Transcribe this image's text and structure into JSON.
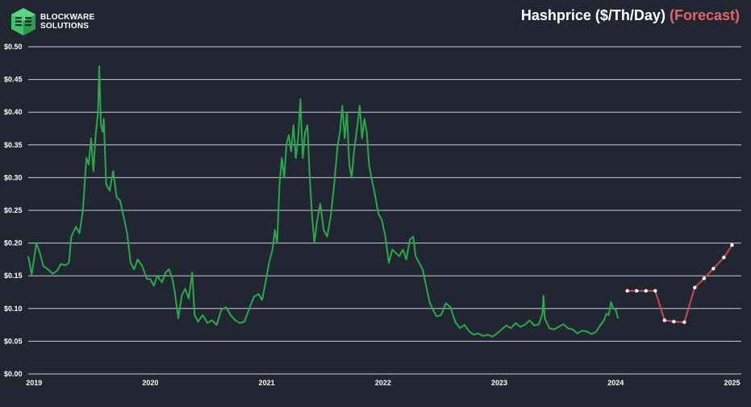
{
  "brand": {
    "line1": "BLOCKWARE",
    "line2": "SOLUTIONS",
    "logo_icon": "blockware-cube-logo",
    "logo_color": "#3cc46a"
  },
  "header": {
    "title_main": "Hashprice ($/Th/Day)",
    "title_forecast": "(Forecast)"
  },
  "colors": {
    "background": "#222633",
    "grid": "#c9ccd4",
    "historical": "#2aa84a",
    "forecast_line": "#c94a4a",
    "forecast_marker": "#ffffff",
    "forecast_title": "#e06565"
  },
  "chart_data": {
    "type": "line",
    "title": "Hashprice ($/Th/Day) (Forecast)",
    "xlabel": "",
    "ylabel": "",
    "grid": true,
    "legend": "none",
    "xlim": [
      2018.95,
      2025.08
    ],
    "ylim": [
      0,
      0.5
    ],
    "y_tick_labels": [
      "$0.00",
      "$0.05",
      "$0.10",
      "$0.15",
      "$0.20",
      "$0.25",
      "$0.30",
      "$0.35",
      "$0.40",
      "$0.45",
      "$0.50"
    ],
    "y_tick_values": [
      0,
      0.05,
      0.1,
      0.15,
      0.2,
      0.25,
      0.3,
      0.35,
      0.4,
      0.45,
      0.5
    ],
    "x_tick_labels": [
      "2019",
      "2020",
      "2021",
      "2022",
      "2023",
      "2024",
      "2025"
    ],
    "x_tick_values": [
      2019,
      2020,
      2021,
      2022,
      2023,
      2024,
      2025
    ],
    "series": [
      {
        "role": "historical",
        "points": [
          [
            2018.95,
            0.18
          ],
          [
            2018.98,
            0.152
          ],
          [
            2019.02,
            0.2
          ],
          [
            2019.05,
            0.185
          ],
          [
            2019.08,
            0.165
          ],
          [
            2019.12,
            0.16
          ],
          [
            2019.16,
            0.153
          ],
          [
            2019.2,
            0.158
          ],
          [
            2019.23,
            0.168
          ],
          [
            2019.27,
            0.166
          ],
          [
            2019.3,
            0.17
          ],
          [
            2019.32,
            0.21
          ],
          [
            2019.36,
            0.225
          ],
          [
            2019.39,
            0.215
          ],
          [
            2019.42,
            0.25
          ],
          [
            2019.45,
            0.33
          ],
          [
            2019.47,
            0.32
          ],
          [
            2019.49,
            0.36
          ],
          [
            2019.51,
            0.31
          ],
          [
            2019.53,
            0.365
          ],
          [
            2019.55,
            0.4
          ],
          [
            2019.56,
            0.47
          ],
          [
            2019.575,
            0.38
          ],
          [
            2019.59,
            0.37
          ],
          [
            2019.6,
            0.39
          ],
          [
            2019.62,
            0.29
          ],
          [
            2019.65,
            0.28
          ],
          [
            2019.68,
            0.31
          ],
          [
            2019.71,
            0.27
          ],
          [
            2019.74,
            0.265
          ],
          [
            2019.77,
            0.24
          ],
          [
            2019.8,
            0.215
          ],
          [
            2019.83,
            0.17
          ],
          [
            2019.86,
            0.16
          ],
          [
            2019.89,
            0.175
          ],
          [
            2019.93,
            0.165
          ],
          [
            2019.97,
            0.145
          ],
          [
            2020.0,
            0.145
          ],
          [
            2020.03,
            0.135
          ],
          [
            2020.06,
            0.15
          ],
          [
            2020.1,
            0.14
          ],
          [
            2020.13,
            0.155
          ],
          [
            2020.16,
            0.16
          ],
          [
            2020.19,
            0.145
          ],
          [
            2020.21,
            0.125
          ],
          [
            2020.24,
            0.085
          ],
          [
            2020.27,
            0.12
          ],
          [
            2020.3,
            0.13
          ],
          [
            2020.33,
            0.115
          ],
          [
            2020.36,
            0.155
          ],
          [
            2020.38,
            0.09
          ],
          [
            2020.41,
            0.08
          ],
          [
            2020.45,
            0.09
          ],
          [
            2020.49,
            0.078
          ],
          [
            2020.53,
            0.082
          ],
          [
            2020.57,
            0.075
          ],
          [
            2020.61,
            0.098
          ],
          [
            2020.65,
            0.102
          ],
          [
            2020.69,
            0.09
          ],
          [
            2020.73,
            0.082
          ],
          [
            2020.77,
            0.078
          ],
          [
            2020.81,
            0.08
          ],
          [
            2020.85,
            0.1
          ],
          [
            2020.89,
            0.118
          ],
          [
            2020.93,
            0.122
          ],
          [
            2020.96,
            0.113
          ],
          [
            2020.99,
            0.14
          ],
          [
            2021.02,
            0.17
          ],
          [
            2021.05,
            0.19
          ],
          [
            2021.07,
            0.22
          ],
          [
            2021.09,
            0.2
          ],
          [
            2021.11,
            0.29
          ],
          [
            2021.13,
            0.33
          ],
          [
            2021.15,
            0.3
          ],
          [
            2021.17,
            0.35
          ],
          [
            2021.19,
            0.365
          ],
          [
            2021.21,
            0.34
          ],
          [
            2021.23,
            0.38
          ],
          [
            2021.25,
            0.33
          ],
          [
            2021.27,
            0.36
          ],
          [
            2021.29,
            0.42
          ],
          [
            2021.31,
            0.33
          ],
          [
            2021.33,
            0.37
          ],
          [
            2021.35,
            0.38
          ],
          [
            2021.37,
            0.3
          ],
          [
            2021.39,
            0.24
          ],
          [
            2021.41,
            0.2
          ],
          [
            2021.43,
            0.23
          ],
          [
            2021.46,
            0.26
          ],
          [
            2021.49,
            0.22
          ],
          [
            2021.52,
            0.21
          ],
          [
            2021.55,
            0.24
          ],
          [
            2021.58,
            0.29
          ],
          [
            2021.61,
            0.35
          ],
          [
            2021.63,
            0.37
          ],
          [
            2021.65,
            0.41
          ],
          [
            2021.67,
            0.36
          ],
          [
            2021.69,
            0.4
          ],
          [
            2021.71,
            0.32
          ],
          [
            2021.73,
            0.3
          ],
          [
            2021.75,
            0.34
          ],
          [
            2021.78,
            0.38
          ],
          [
            2021.8,
            0.41
          ],
          [
            2021.82,
            0.36
          ],
          [
            2021.84,
            0.39
          ],
          [
            2021.86,
            0.37
          ],
          [
            2021.88,
            0.32
          ],
          [
            2021.9,
            0.3
          ],
          [
            2021.93,
            0.275
          ],
          [
            2021.96,
            0.245
          ],
          [
            2021.99,
            0.235
          ],
          [
            2022.02,
            0.21
          ],
          [
            2022.05,
            0.17
          ],
          [
            2022.08,
            0.19
          ],
          [
            2022.11,
            0.185
          ],
          [
            2022.14,
            0.18
          ],
          [
            2022.17,
            0.19
          ],
          [
            2022.2,
            0.175
          ],
          [
            2022.23,
            0.205
          ],
          [
            2022.26,
            0.21
          ],
          [
            2022.28,
            0.18
          ],
          [
            2022.31,
            0.17
          ],
          [
            2022.34,
            0.16
          ],
          [
            2022.37,
            0.135
          ],
          [
            2022.4,
            0.11
          ],
          [
            2022.43,
            0.098
          ],
          [
            2022.46,
            0.088
          ],
          [
            2022.5,
            0.09
          ],
          [
            2022.54,
            0.108
          ],
          [
            2022.58,
            0.102
          ],
          [
            2022.62,
            0.08
          ],
          [
            2022.66,
            0.07
          ],
          [
            2022.7,
            0.075
          ],
          [
            2022.74,
            0.065
          ],
          [
            2022.78,
            0.06
          ],
          [
            2022.82,
            0.062
          ],
          [
            2022.86,
            0.058
          ],
          [
            2022.9,
            0.06
          ],
          [
            2022.94,
            0.057
          ],
          [
            2022.98,
            0.062
          ],
          [
            2023.02,
            0.068
          ],
          [
            2023.06,
            0.074
          ],
          [
            2023.1,
            0.07
          ],
          [
            2023.14,
            0.078
          ],
          [
            2023.18,
            0.072
          ],
          [
            2023.22,
            0.075
          ],
          [
            2023.26,
            0.082
          ],
          [
            2023.3,
            0.074
          ],
          [
            2023.34,
            0.076
          ],
          [
            2023.37,
            0.092
          ],
          [
            2023.38,
            0.12
          ],
          [
            2023.39,
            0.085
          ],
          [
            2023.43,
            0.07
          ],
          [
            2023.47,
            0.068
          ],
          [
            2023.51,
            0.072
          ],
          [
            2023.55,
            0.076
          ],
          [
            2023.59,
            0.07
          ],
          [
            2023.63,
            0.068
          ],
          [
            2023.67,
            0.062
          ],
          [
            2023.71,
            0.066
          ],
          [
            2023.75,
            0.065
          ],
          [
            2023.79,
            0.061
          ],
          [
            2023.83,
            0.064
          ],
          [
            2023.87,
            0.075
          ],
          [
            2023.9,
            0.082
          ],
          [
            2023.92,
            0.092
          ],
          [
            2023.94,
            0.09
          ],
          [
            2023.96,
            0.11
          ],
          [
            2023.98,
            0.1
          ],
          [
            2024.0,
            0.098
          ],
          [
            2024.02,
            0.085
          ]
        ]
      },
      {
        "role": "forecast",
        "points": [
          [
            2024.1,
            0.127
          ],
          [
            2024.18,
            0.127
          ],
          [
            2024.26,
            0.127
          ],
          [
            2024.34,
            0.127
          ],
          [
            2024.42,
            0.082
          ],
          [
            2024.5,
            0.08
          ],
          [
            2024.59,
            0.079
          ],
          [
            2024.68,
            0.132
          ],
          [
            2024.76,
            0.146
          ],
          [
            2024.84,
            0.161
          ],
          [
            2024.93,
            0.178
          ],
          [
            2025.0,
            0.197
          ]
        ]
      }
    ]
  }
}
